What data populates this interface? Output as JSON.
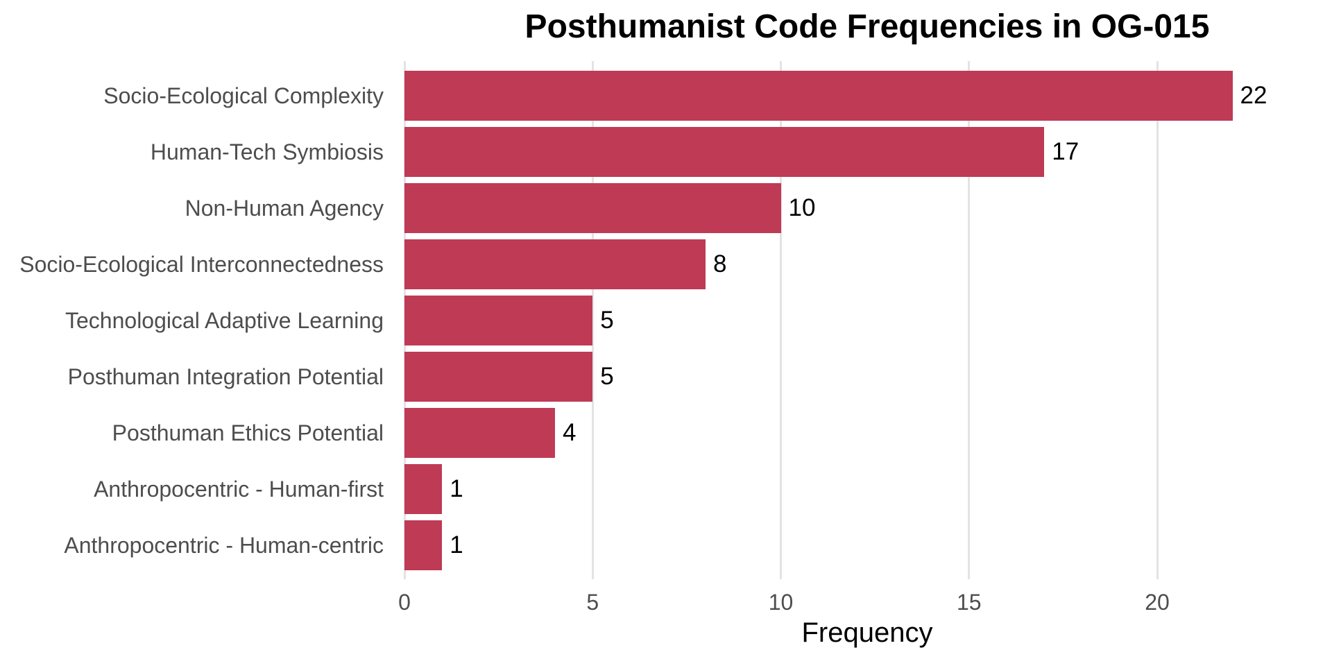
{
  "colors": {
    "bar_fill": "#BE3A55",
    "gridline": "#E3E3E3",
    "axis_text": "#4D4D4D",
    "value_label_text": "#000000",
    "title_text": "#000000",
    "background": "#FFFFFF"
  },
  "chart_data": {
    "type": "bar",
    "orientation": "horizontal",
    "title": "Posthumanist Code Frequencies in OG-015",
    "xlabel": "Frequency",
    "ylabel": "",
    "categories": [
      "Socio-Ecological Complexity",
      "Human-Tech Symbiosis",
      "Non-Human Agency",
      "Socio-Ecological Interconnectedness",
      "Technological Adaptive Learning",
      "Posthuman Integration Potential",
      "Posthuman Ethics Potential",
      "Anthropocentric - Human-first",
      "Anthropocentric - Human-centric"
    ],
    "values": [
      22,
      17,
      10,
      8,
      5,
      5,
      4,
      1,
      1
    ],
    "xticks": [
      0,
      5,
      10,
      15,
      20
    ],
    "xlim": [
      0,
      24.6
    ],
    "grid": "major-vertical-only",
    "legend": "none",
    "bar_value_labels_shown": true
  }
}
